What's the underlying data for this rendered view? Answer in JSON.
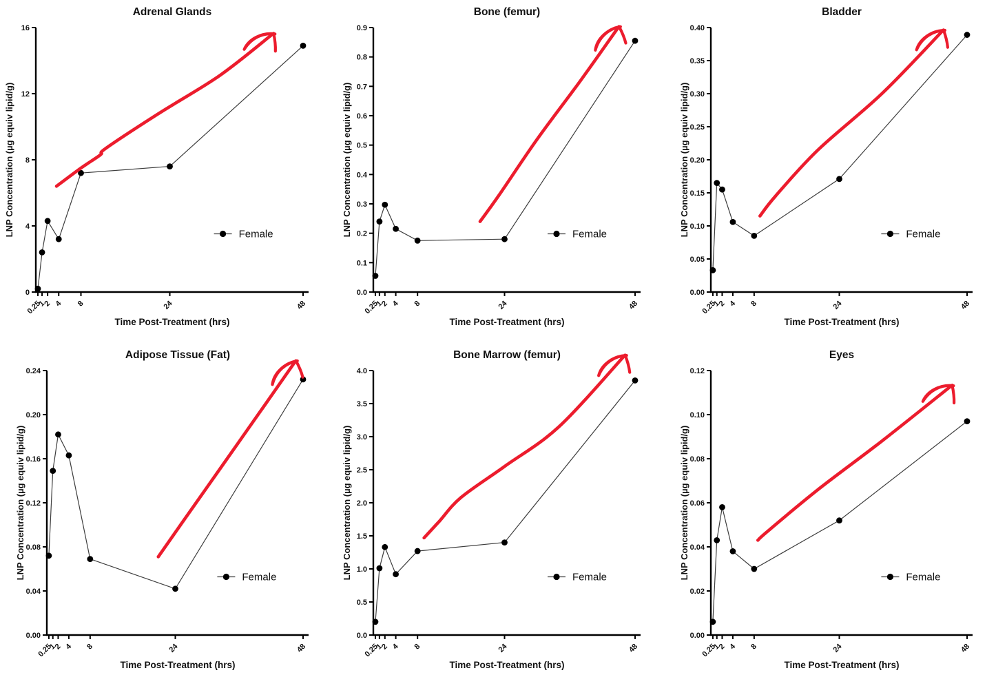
{
  "figure": {
    "background": "#ffffff",
    "colors": {
      "series_line": "#3d3d3d",
      "marker": "#000000",
      "axis": "#000000",
      "text": "#111111",
      "annotation_arrow": "#ec1c2d"
    },
    "legend": {
      "label": "Female",
      "position": "inside-right"
    }
  },
  "chart_data": [
    {
      "type": "line",
      "title": "Adrenal Glands",
      "xlabel": "Time Post-Treatment (hrs)",
      "ylabel": "LNP Concentration (µg equiv lipid/g)",
      "legend": "Female",
      "x": [
        0.25,
        1,
        2,
        4,
        8,
        24,
        48
      ],
      "xtick_labels": [
        "0.25",
        "1",
        "2",
        "4",
        "8",
        "24",
        "48"
      ],
      "values": [
        0.2,
        2.4,
        4.3,
        3.2,
        7.2,
        7.6,
        14.9
      ],
      "xlim": [
        0,
        48
      ],
      "ylim": [
        0,
        16
      ],
      "yticks": [
        0,
        4,
        8,
        12,
        16
      ],
      "ytick_labels": [
        "0",
        "4",
        "8",
        "12",
        "16"
      ],
      "grid": false,
      "annotation_arrow_points": [
        [
          3.6,
          6.4
        ],
        [
          8,
          7.5
        ],
        [
          11.5,
          8.3
        ],
        [
          12.5,
          8.7
        ],
        [
          22,
          10.8
        ],
        [
          33,
          13.1
        ],
        [
          42.5,
          15.6
        ]
      ]
    },
    {
      "type": "line",
      "title": "Bone (femur)",
      "xlabel": "Time Post-Treatment (hrs)",
      "ylabel": "LNP Concentration (µg equiv lipid/g)",
      "legend": "Female",
      "x": [
        0.25,
        1,
        2,
        4,
        8,
        24,
        48
      ],
      "xtick_labels": [
        "0.25",
        "1",
        "2",
        "4",
        "8",
        "24",
        "48"
      ],
      "values": [
        0.055,
        0.24,
        0.297,
        0.215,
        0.175,
        0.18,
        0.855
      ],
      "xlim": [
        0,
        48
      ],
      "ylim": [
        0,
        0.9
      ],
      "yticks": [
        0,
        0.1,
        0.2,
        0.3,
        0.4,
        0.5,
        0.6,
        0.7,
        0.8,
        0.9
      ],
      "ytick_labels": [
        "0.0",
        "0.1",
        "0.2",
        "0.3",
        "0.4",
        "0.5",
        "0.6",
        "0.7",
        "0.8",
        "0.9"
      ],
      "grid": false,
      "annotation_arrow_points": [
        [
          19.5,
          0.24
        ],
        [
          23,
          0.33
        ],
        [
          30,
          0.52
        ],
        [
          38,
          0.72
        ],
        [
          44.9,
          0.9
        ]
      ]
    },
    {
      "type": "line",
      "title": "Bladder",
      "xlabel": "Time Post-Treatment (hrs)",
      "ylabel": "LNP Concentration (µg equiv lipid/g)",
      "legend": "Female",
      "x": [
        0.25,
        1,
        2,
        4,
        8,
        24,
        48
      ],
      "xtick_labels": [
        "0.25",
        "1",
        "2",
        "4",
        "8",
        "24",
        "48"
      ],
      "values": [
        0.033,
        0.165,
        0.155,
        0.106,
        0.085,
        0.171,
        0.389
      ],
      "xlim": [
        0,
        48
      ],
      "ylim": [
        0,
        0.4
      ],
      "yticks": [
        0,
        0.05,
        0.1,
        0.15,
        0.2,
        0.25,
        0.3,
        0.35,
        0.4
      ],
      "ytick_labels": [
        "0.00",
        "0.05",
        "0.10",
        "0.15",
        "0.20",
        "0.25",
        "0.30",
        "0.35",
        "0.40"
      ],
      "grid": false,
      "annotation_arrow_points": [
        [
          9.1,
          0.115
        ],
        [
          12,
          0.145
        ],
        [
          20,
          0.215
        ],
        [
          32,
          0.3
        ],
        [
          43.4,
          0.395
        ]
      ]
    },
    {
      "type": "line",
      "title": "Adipose Tissue (Fat)",
      "xlabel": "Time Post-Treatment (hrs)",
      "ylabel": "LNP Concentration (µg equiv lipid/g)",
      "legend": "Female",
      "x": [
        0.25,
        1,
        2,
        4,
        8,
        24,
        48
      ],
      "xtick_labels": [
        "0.25",
        "1",
        "2",
        "4",
        "8",
        "24",
        "48"
      ],
      "values": [
        0.072,
        0.149,
        0.182,
        0.163,
        0.069,
        0.042,
        0.232
      ],
      "xlim": [
        0,
        48
      ],
      "ylim": [
        0,
        0.24
      ],
      "yticks": [
        0,
        0.04,
        0.08,
        0.12,
        0.16,
        0.2,
        0.24
      ],
      "ytick_labels": [
        "0.00",
        "0.04",
        "0.08",
        "0.12",
        "0.16",
        "0.20",
        "0.24"
      ],
      "grid": false,
      "annotation_arrow_points": [
        [
          20.8,
          0.071
        ],
        [
          25,
          0.1
        ],
        [
          33,
          0.155
        ],
        [
          41,
          0.21
        ],
        [
          46.5,
          0.248
        ]
      ]
    },
    {
      "type": "line",
      "title": "Bone Marrow (femur)",
      "xlabel": "Time Post-Treatment (hrs)",
      "ylabel": "LNP Concentration (µg equiv lipid/g)",
      "legend": "Female",
      "x": [
        0.25,
        1,
        2,
        4,
        8,
        24,
        48
      ],
      "xtick_labels": [
        "0.25",
        "1",
        "2",
        "4",
        "8",
        "24",
        "48"
      ],
      "values": [
        0.2,
        1.01,
        1.33,
        0.92,
        1.27,
        1.4,
        3.85
      ],
      "xlim": [
        0,
        48
      ],
      "ylim": [
        0,
        4.0
      ],
      "yticks": [
        0,
        0.5,
        1.0,
        1.5,
        2.0,
        2.5,
        3.0,
        3.5,
        4.0
      ],
      "ytick_labels": [
        "0.0",
        "0.5",
        "1.0",
        "1.5",
        "2.0",
        "2.5",
        "3.0",
        "3.5",
        "4.0"
      ],
      "grid": false,
      "annotation_arrow_points": [
        [
          9.2,
          1.47
        ],
        [
          12,
          1.72
        ],
        [
          16,
          2.08
        ],
        [
          24,
          2.55
        ],
        [
          34,
          3.15
        ],
        [
          46,
          4.22
        ]
      ]
    },
    {
      "type": "line",
      "title": "Eyes",
      "xlabel": "Time Post-Treatment (hrs)",
      "ylabel": "LNP Concentration (µg equiv lipid/g)",
      "legend": "Female",
      "x": [
        0.25,
        1,
        2,
        4,
        8,
        24,
        48
      ],
      "xtick_labels": [
        "0.25",
        "1",
        "2",
        "4",
        "8",
        "24",
        "48"
      ],
      "values": [
        0.006,
        0.043,
        0.058,
        0.038,
        0.03,
        0.052,
        0.097
      ],
      "xlim": [
        0,
        48
      ],
      "ylim": [
        0,
        0.12
      ],
      "yticks": [
        0,
        0.02,
        0.04,
        0.06,
        0.08,
        0.1,
        0.12
      ],
      "ytick_labels": [
        "0.00",
        "0.02",
        "0.04",
        "0.06",
        "0.08",
        "0.10",
        "0.12"
      ],
      "grid": false,
      "annotation_arrow_points": [
        [
          8.7,
          0.043
        ],
        [
          10.5,
          0.047
        ],
        [
          20,
          0.066
        ],
        [
          32,
          0.088
        ],
        [
          45,
          0.113
        ]
      ]
    }
  ]
}
